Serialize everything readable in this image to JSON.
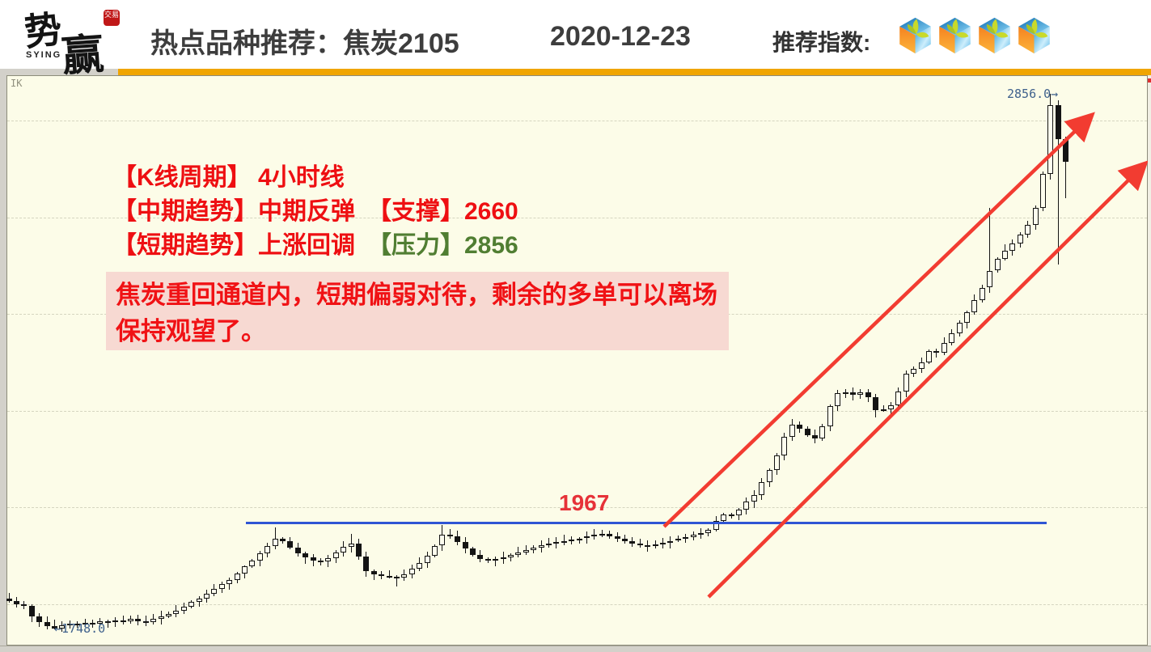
{
  "header": {
    "logo": {
      "chars1": "势",
      "chars2": "赢",
      "seal": "交易",
      "sub": "SYING"
    },
    "title": "热点品种推荐：焦炭2105",
    "date": "2020-12-23",
    "rating_label": "推荐指数:",
    "rating_count": 4,
    "accent_bar_color": "#f0a500"
  },
  "annotations": {
    "line1_label": "【K线周期】",
    "line1_value": " 4小时线",
    "line2_label": "【中期趋势】中期反弹",
    "support_label": "【支撑】",
    "support_value": "2660",
    "line3_label": "【短期趋势】上涨回调",
    "pressure_label": "【压力】",
    "pressure_value": "2856",
    "comment": "焦炭重回通道内，短期偏弱对待，剩余的多单可以离场保持观望了。"
  },
  "chart_data": {
    "type": "candlestick",
    "symbol_corner": "IK",
    "period": "4小时线",
    "title": "焦炭2105 4小时K线",
    "price_axis": {
      "gridline_prices": [
        1800,
        2000,
        2200,
        2400,
        2600,
        2800
      ],
      "ylim": [
        1720,
        2900
      ],
      "grid": "dashed"
    },
    "key_levels": {
      "horizontal_line_price": 1967,
      "horizontal_line_label": "1967",
      "low_price": 1748.0,
      "low_label": "←1748.0",
      "high_price": 2856.0,
      "high_label": "2856.0→",
      "support": 2660,
      "resistance": 2856
    },
    "trend_channel": {
      "style": "two parallel rising red arrows",
      "color": "#f23c31"
    },
    "colors": {
      "up_candle": "#fdfdee",
      "down_candle": "#141414",
      "level_line": "#2f55d4",
      "background": "#fcfce8",
      "label_blue": "#3f618c",
      "label_red": "#e63238"
    },
    "candles_close": [
      1806,
      1800,
      1796,
      1774,
      1763,
      1755,
      1750,
      1757,
      1759,
      1758,
      1762,
      1760,
      1765,
      1763,
      1767,
      1765,
      1769,
      1764,
      1762,
      1769,
      1775,
      1780,
      1787,
      1795,
      1804,
      1812,
      1821,
      1831,
      1841,
      1850,
      1863,
      1878,
      1890,
      1905,
      1921,
      1936,
      1930,
      1917,
      1905,
      1896,
      1890,
      1889,
      1895,
      1906,
      1918,
      1926,
      1898,
      1868,
      1861,
      1858,
      1856,
      1854,
      1861,
      1873,
      1885,
      1900,
      1921,
      1943,
      1940,
      1928,
      1915,
      1902,
      1893,
      1890,
      1893,
      1897,
      1902,
      1907,
      1912,
      1917,
      1922,
      1926,
      1929,
      1931,
      1933,
      1936,
      1940,
      1944,
      1946,
      1941,
      1936,
      1931,
      1926,
      1922,
      1921,
      1923,
      1927,
      1931,
      1935,
      1939,
      1943,
      1947,
      1954,
      1972,
      1985,
      1983,
      1996,
      2012,
      2026,
      2053,
      2077,
      2107,
      2146,
      2172,
      2163,
      2150,
      2143,
      2168,
      2210,
      2237,
      2238,
      2233,
      2238,
      2228,
      2202,
      2203,
      2212,
      2240,
      2277,
      2286,
      2300,
      2323,
      2321,
      2340,
      2361,
      2382,
      2404,
      2429,
      2455,
      2490,
      2515,
      2532,
      2547,
      2565,
      2585,
      2620,
      2690,
      2832,
      2762,
      2715
    ],
    "wick_overrides": [
      {
        "i": 6,
        "low": 1748
      },
      {
        "i": 35,
        "high": 1958
      },
      {
        "i": 45,
        "high": 1945
      },
      {
        "i": 51,
        "low": 1836
      },
      {
        "i": 57,
        "high": 1963
      },
      {
        "i": 114,
        "low": 2186
      },
      {
        "i": 129,
        "high": 2620
      },
      {
        "i": 137,
        "high": 2856
      },
      {
        "i": 138,
        "low": 2502
      },
      {
        "i": 139,
        "low": 2640
      }
    ]
  }
}
